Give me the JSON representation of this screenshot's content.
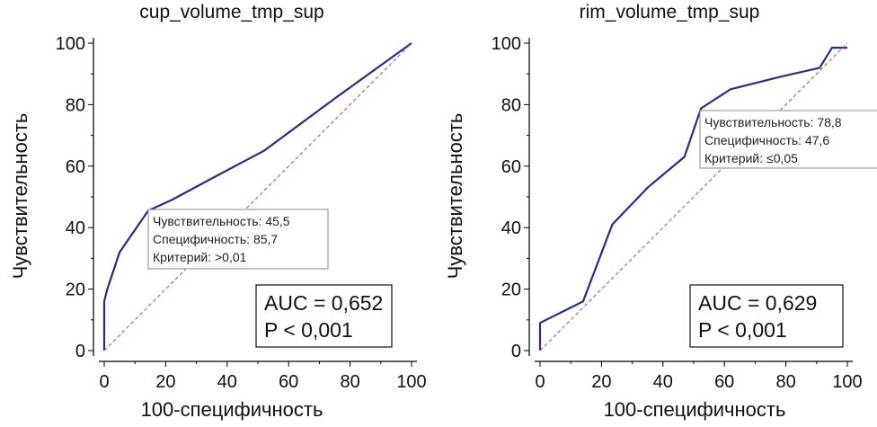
{
  "chart_data": [
    {
      "type": "line",
      "title": "cup_volume_tmp_sup",
      "xlabel": "100-специфичность",
      "ylabel": "Чувствительность",
      "xlim": [
        0,
        100
      ],
      "ylim": [
        0,
        100
      ],
      "xticks": [
        "0",
        "20",
        "40",
        "60",
        "80",
        "100"
      ],
      "yticks": [
        "0",
        "20",
        "40",
        "60",
        "80",
        "100"
      ],
      "series": [
        {
          "name": "ROC",
          "color": "#2b2b8f",
          "x": [
            0,
            0,
            1,
            5,
            14.3,
            22,
            35,
            52,
            75,
            100
          ],
          "y": [
            0,
            16,
            20,
            32,
            45.5,
            49,
            56,
            65,
            82,
            100
          ]
        },
        {
          "name": "reference",
          "color": "#b85a5a",
          "x": [
            0,
            100
          ],
          "y": [
            0,
            100
          ]
        }
      ],
      "annotation": {
        "lines": [
          "Чувствительность: 45,5",
          "Специфичность: 85,7",
          "Критерий: >0,01"
        ]
      },
      "stats": {
        "auc": "AUC = 0,652",
        "p": "P < 0,001"
      }
    },
    {
      "type": "line",
      "title": "rim_volume_tmp_sup",
      "xlabel": "100-специфичность",
      "ylabel": "Чувствительность",
      "xlim": [
        0,
        100
      ],
      "ylim": [
        0,
        100
      ],
      "xticks": [
        "0",
        "20",
        "40",
        "60",
        "80",
        "100"
      ],
      "yticks": [
        "0",
        "20",
        "40",
        "60",
        "80",
        "100"
      ],
      "series": [
        {
          "name": "ROC",
          "color": "#2b2b8f",
          "x": [
            0,
            0,
            14,
            23.5,
            35,
            47,
            52.4,
            62,
            78,
            91,
            95,
            100
          ],
          "y": [
            0,
            9,
            16,
            41,
            53,
            63,
            78.8,
            85,
            89,
            92,
            98.5,
            98.5
          ]
        },
        {
          "name": "reference",
          "color": "#b85a5a",
          "x": [
            0,
            100
          ],
          "y": [
            0,
            100
          ]
        }
      ],
      "annotation": {
        "lines": [
          "Чувствительность: 78,8",
          "Специфичность: 47,6",
          "Критерий: ≤0,05"
        ]
      },
      "stats": {
        "auc": "AUC = 0,629",
        "p": "P < 0,001"
      }
    }
  ]
}
